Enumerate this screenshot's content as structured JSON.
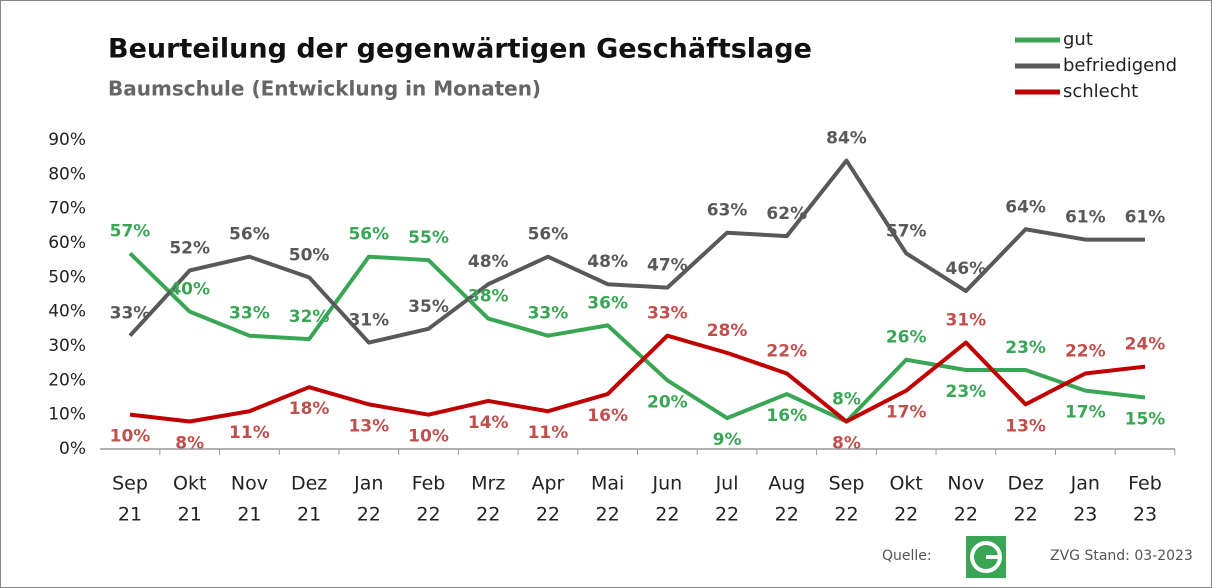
{
  "chart_data": {
    "type": "line",
    "title": "Beurteilung der gegenwärtigen Geschäftslage",
    "subtitle": "Baumschule (Entwicklung in Monaten)",
    "categories": [
      [
        "Sep",
        "21"
      ],
      [
        "Okt",
        "21"
      ],
      [
        "Nov",
        "21"
      ],
      [
        "Dez",
        "21"
      ],
      [
        "Jan",
        "22"
      ],
      [
        "Feb",
        "22"
      ],
      [
        "Mrz",
        "22"
      ],
      [
        "Apr",
        "22"
      ],
      [
        "Mai",
        "22"
      ],
      [
        "Jun",
        "22"
      ],
      [
        "Jul",
        "22"
      ],
      [
        "Aug",
        "22"
      ],
      [
        "Sep",
        "22"
      ],
      [
        "Okt",
        "22"
      ],
      [
        "Nov",
        "22"
      ],
      [
        "Dez",
        "22"
      ],
      [
        "Jan",
        "23"
      ],
      [
        "Feb",
        "23"
      ]
    ],
    "series": [
      {
        "name": "gut",
        "color": "#3aa655",
        "values": [
          57,
          40,
          33,
          32,
          56,
          55,
          38,
          33,
          36,
          20,
          9,
          16,
          8,
          26,
          23,
          23,
          17,
          15
        ],
        "value_labels": [
          "57%",
          "40%",
          "33%",
          "32%",
          "56%",
          "55%",
          "38%",
          "33%",
          "36%",
          "20%",
          "9%",
          "16%",
          "8%",
          "26%",
          "23%",
          "23%",
          "17%",
          "15%"
        ]
      },
      {
        "name": "befriedigend",
        "color": "#595959",
        "values": [
          33,
          52,
          56,
          50,
          31,
          35,
          48,
          56,
          48,
          47,
          63,
          62,
          84,
          57,
          46,
          64,
          61,
          61
        ],
        "value_labels": [
          "33%",
          "52%",
          "56%",
          "50%",
          "31%",
          "35%",
          "48%",
          "56%",
          "48%",
          "47%",
          "63%",
          "62%",
          "84%",
          "57%",
          "46%",
          "64%",
          "61%",
          "61%"
        ]
      },
      {
        "name": "schlecht",
        "color": "#c00000",
        "values": [
          10,
          8,
          11,
          18,
          13,
          10,
          14,
          11,
          16,
          33,
          28,
          22,
          8,
          17,
          31,
          13,
          22,
          24
        ],
        "value_labels": [
          "10%",
          "8%",
          "11%",
          "18%",
          "13%",
          "10%",
          "14%",
          "11%",
          "16%",
          "33%",
          "28%",
          "22%",
          "8%",
          "17%",
          "31%",
          "13%",
          "22%",
          "24%"
        ]
      }
    ],
    "ylim": [
      0,
      90
    ],
    "yticks": [
      {
        "value": 0,
        "label": "0%"
      },
      {
        "value": 10,
        "label": "10%"
      },
      {
        "value": 20,
        "label": "20%"
      },
      {
        "value": 30,
        "label": "30%"
      },
      {
        "value": 40,
        "label": "40%"
      },
      {
        "value": 50,
        "label": "50%"
      },
      {
        "value": 60,
        "label": "60%"
      },
      {
        "value": 70,
        "label": "70%"
      },
      {
        "value": 80,
        "label": "80%"
      },
      {
        "value": 90,
        "label": "90%"
      }
    ],
    "source_label": "Quelle:",
    "source_note": "ZVG Stand: 03-2023"
  }
}
